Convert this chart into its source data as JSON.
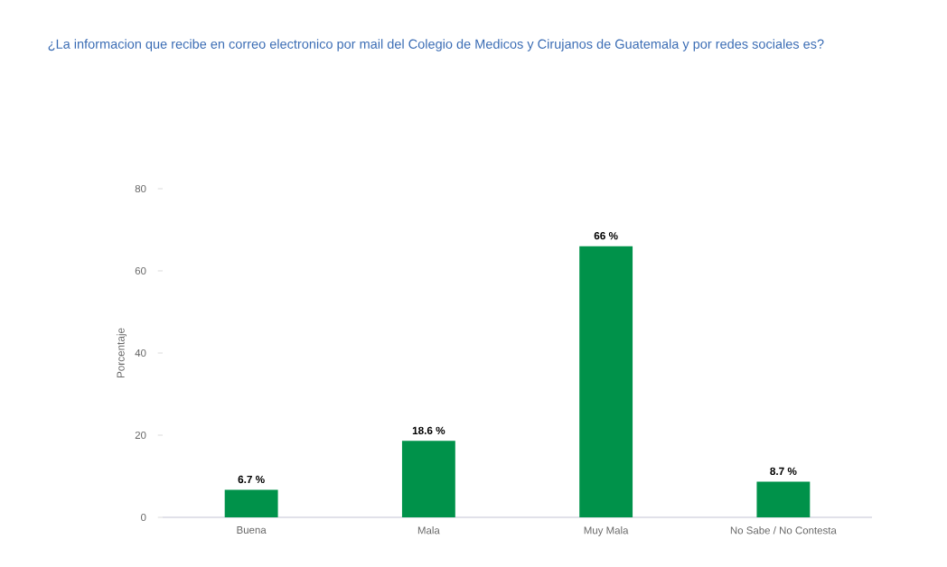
{
  "chart_data": {
    "type": "bar",
    "title": "¿La informacion que recibe en correo electronico por mail del Colegio de Medicos y Cirujanos de Guatemala y por redes sociales es?",
    "ylabel": "Porcentaje",
    "categories": [
      "Buena",
      "Mala",
      "Muy Mala",
      "No Sabe / No Contesta"
    ],
    "values": [
      6.7,
      18.6,
      66,
      8.7
    ],
    "value_labels": [
      "6.7 %",
      "18.6 %",
      "66 %",
      "8.7 %"
    ],
    "color": "#00924a",
    "ylim": [
      0,
      80
    ],
    "yticks": [
      0,
      20,
      40,
      60,
      80
    ]
  }
}
